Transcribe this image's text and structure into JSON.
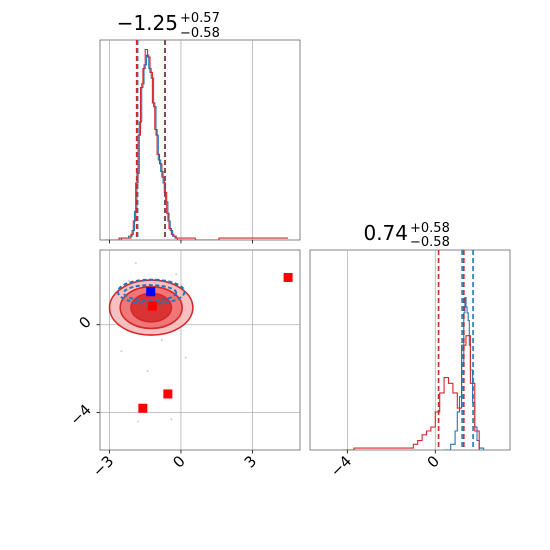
{
  "chart_data": {
    "type": "corner",
    "panels": [
      {
        "id": "hist-x",
        "type": "histogram",
        "title": {
          "value": "−1.25",
          "upper": "+0.57",
          "lower": "−0.58"
        },
        "xlim": [
          -3.4,
          5.0
        ],
        "ylim": [
          0,
          1.05
        ],
        "vlines": [
          {
            "x": -1.82,
            "color": "#1f77b4"
          },
          {
            "x": -1.86,
            "color": "#d62728"
          },
          {
            "x": -0.68,
            "color": "#1f77b4"
          },
          {
            "x": -0.66,
            "color": "#d62728"
          }
        ],
        "series": [
          {
            "color": "#1f77b4",
            "x": [
              -3.0,
              -2.5,
              -2.2,
              -2.05,
              -1.95,
              -1.85,
              -1.75,
              -1.65,
              -1.55,
              -1.45,
              -1.35,
              -1.25,
              -1.15,
              -1.05,
              -0.95,
              -0.85,
              -0.75,
              -0.65,
              -0.55,
              -0.45,
              -0.35,
              -0.25,
              -0.15,
              0.0,
              0.5
            ],
            "y": [
              0.0,
              0.01,
              0.02,
              0.05,
              0.15,
              0.35,
              0.62,
              0.82,
              0.92,
              0.97,
              0.9,
              0.85,
              0.7,
              0.55,
              0.42,
              0.36,
              0.3,
              0.2,
              0.1,
              0.05,
              0.02,
              0.01,
              0.0,
              0.0,
              0.0
            ]
          },
          {
            "color": "#d62728",
            "x": [
              -3.2,
              -2.6,
              -2.3,
              -2.1,
              -2.0,
              -1.9,
              -1.8,
              -1.7,
              -1.6,
              -1.5,
              -1.4,
              -1.3,
              -1.2,
              -1.1,
              -1.0,
              -0.9,
              -0.8,
              -0.7,
              -0.6,
              -0.5,
              -0.4,
              -0.3,
              -0.2,
              0.0,
              0.6,
              1.6,
              4.5
            ],
            "y": [
              0.0,
              0.01,
              0.01,
              0.03,
              0.1,
              0.3,
              0.55,
              0.8,
              0.9,
              1.0,
              0.96,
              0.88,
              0.72,
              0.58,
              0.45,
              0.4,
              0.33,
              0.25,
              0.14,
              0.06,
              0.03,
              0.02,
              0.01,
              0.01,
              0.0,
              0.01,
              0.01
            ]
          }
        ]
      },
      {
        "id": "scatter-xy",
        "type": "2d-density",
        "xlim": [
          -3.4,
          5.0
        ],
        "ylim": [
          -5.7,
          3.4
        ],
        "xticks": [
          "−3",
          "0",
          "3"
        ],
        "yticks": [
          "0",
          "−4"
        ],
        "xtick_values": [
          -3,
          0,
          3
        ],
        "ytick_values": [
          0,
          -4
        ],
        "grid": true,
        "blue_contours": [
          {
            "cx": -1.25,
            "cy": 1.5,
            "rx": 2.8,
            "ry": 0.55
          },
          {
            "cx": -1.3,
            "cy": 1.45,
            "rx": 2.2,
            "ry": 0.35
          }
        ],
        "red_density": {
          "cx": -1.25,
          "cy": 0.78,
          "levels": [
            {
              "rx": 1.75,
              "ry": 1.25
            },
            {
              "rx": 1.3,
              "ry": 0.95
            },
            {
              "rx": 0.85,
              "ry": 0.65
            }
          ]
        },
        "markers": [
          {
            "x": -1.27,
            "y": 1.5,
            "color": "#0000ff"
          },
          {
            "x": -1.2,
            "y": 0.85,
            "color": "#ff0000"
          },
          {
            "x": 4.5,
            "y": 2.15,
            "color": "#ff0000"
          },
          {
            "x": -0.55,
            "y": -3.15,
            "color": "#ff0000"
          },
          {
            "x": -1.6,
            "y": -3.8,
            "color": "#ff0000"
          }
        ],
        "noise_points": [
          [
            -2.2,
            2.0
          ],
          [
            -0.2,
            2.3
          ],
          [
            0.1,
            0.5
          ],
          [
            -2.6,
            0.3
          ],
          [
            -1.4,
            -2.1
          ],
          [
            -0.4,
            -4.3
          ],
          [
            -1.8,
            -4.4
          ],
          [
            0.2,
            -1.5
          ],
          [
            -2.5,
            -1.2
          ],
          [
            0.4,
            1.2
          ],
          [
            -1.9,
            2.8
          ],
          [
            -0.8,
            -0.7
          ]
        ]
      },
      {
        "id": "hist-y",
        "type": "histogram",
        "title": {
          "value": "0.74",
          "upper": "+0.58",
          "lower": "−0.58"
        },
        "xlim": [
          -5.7,
          3.4
        ],
        "ylim": [
          0,
          1.05
        ],
        "xticks": [
          "−4",
          "0"
        ],
        "xtick_values": [
          -4,
          0
        ],
        "grid": true,
        "vlines": [
          {
            "x": 0.15,
            "color": "#d62728"
          },
          {
            "x": 1.3,
            "color": "#d62728"
          },
          {
            "x": 1.22,
            "color": "#1f77b4"
          },
          {
            "x": 1.72,
            "color": "#1f77b4"
          }
        ],
        "series": [
          {
            "color": "#1f77b4",
            "x": [
              0.4,
              0.7,
              0.9,
              1.0,
              1.1,
              1.2,
              1.3,
              1.35,
              1.4,
              1.45,
              1.5,
              1.55,
              1.6,
              1.7,
              1.8,
              1.9,
              2.0,
              2.2
            ],
            "y": [
              0.0,
              0.03,
              0.1,
              0.2,
              0.28,
              0.45,
              0.72,
              0.8,
              0.75,
              0.72,
              0.68,
              0.55,
              0.42,
              0.25,
              0.12,
              0.05,
              0.01,
              0.0
            ]
          },
          {
            "color": "#d62728",
            "x": [
              -4.2,
              -3.7,
              -1.5,
              -1.0,
              -0.8,
              -0.6,
              -0.4,
              -0.2,
              0.0,
              0.2,
              0.4,
              0.6,
              0.8,
              1.0,
              1.2,
              1.4,
              1.6,
              1.8,
              2.0
            ],
            "y": [
              0.0,
              0.01,
              0.01,
              0.03,
              0.05,
              0.08,
              0.1,
              0.12,
              0.2,
              0.3,
              0.38,
              0.35,
              0.3,
              0.22,
              0.55,
              0.6,
              0.35,
              0.1,
              0.0
            ]
          }
        ]
      }
    ]
  }
}
